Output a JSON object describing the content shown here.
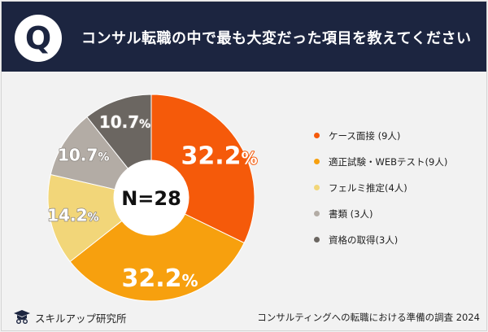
{
  "header": {
    "letter": "Q",
    "title": "コンサル転職の中で最も大変だった項目を教えてください"
  },
  "chart_data": {
    "type": "pie",
    "title": "コンサル転職の中で最も大変だった項目を教えてください",
    "center_label": "N=28",
    "slices": [
      {
        "label": "ケース面接 (9人)",
        "value": 32.2,
        "display": "32.2",
        "color": "#f55a0a"
      },
      {
        "label": "適正試験・WEBテスト(9人)",
        "value": 32.2,
        "display": "32.2",
        "color": "#f7a00e"
      },
      {
        "label": "フェルミ推定(4人)",
        "value": 14.2,
        "display": "14.2",
        "color": "#f2d679"
      },
      {
        "label": "書類 (3人)",
        "value": 10.7,
        "display": "10.7",
        "color": "#b3aca5"
      },
      {
        "label": "資格の取得(3人)",
        "value": 10.7,
        "display": "10.7",
        "color": "#6b6661"
      }
    ],
    "percent_suffix": "%"
  },
  "footer": {
    "brand": "スキルアップ研究所",
    "source": "コンサルティングへの転職における準備の調査 2024"
  }
}
